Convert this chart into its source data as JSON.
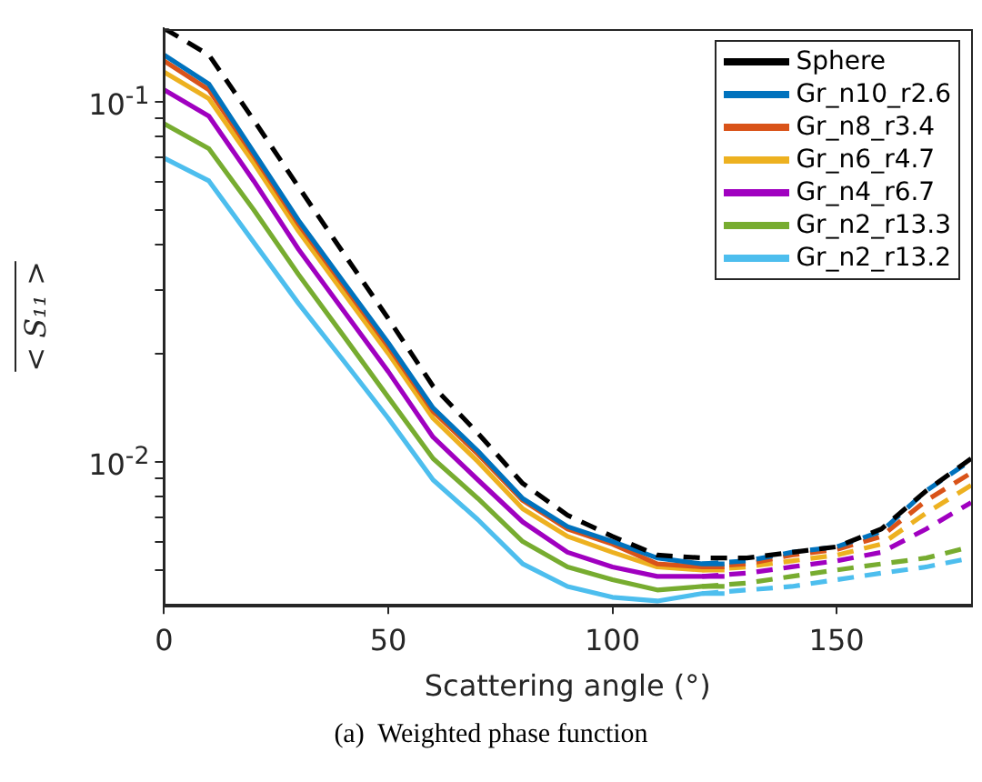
{
  "chart_data": {
    "type": "line",
    "xlabel": "Scattering angle (°)",
    "ylabel": "< S₁₁ >",
    "annotations": [
      "(a)  Weighted phase function"
    ],
    "log": "y",
    "grid": false,
    "legend": "top right",
    "marker": "none",
    "xlim": [
      0,
      180
    ],
    "xticks": [
      0,
      50,
      100,
      150
    ],
    "ylim": [
      0.004,
      0.16
    ],
    "yticks": [
      {
        "value": 0.005,
        "label": null
      },
      {
        "value": 0.006,
        "label": null
      },
      {
        "value": 0.007,
        "label": null
      },
      {
        "value": 0.008,
        "label": null
      },
      {
        "value": 0.009,
        "label": null
      },
      {
        "value": 0.01,
        "label": "10$^{-2}$"
      },
      {
        "value": 0.02,
        "label": null
      },
      {
        "value": 0.03,
        "label": null
      },
      {
        "value": 0.04,
        "label": null
      },
      {
        "value": 0.05,
        "label": null
      },
      {
        "value": 0.06,
        "label": null
      },
      {
        "value": 0.07,
        "label": null
      },
      {
        "value": 0.08,
        "label": null
      },
      {
        "value": 0.09,
        "label": null
      },
      {
        "value": 0.1,
        "label": "10$^{-1}$"
      }
    ],
    "series": [
      {
        "name": "Sphere",
        "color": "#000000",
        "line_style": "dashed",
        "x": [
          0,
          10,
          20,
          30,
          40,
          50,
          60,
          70,
          80,
          90,
          100,
          110,
          120,
          130,
          140,
          150,
          160,
          170,
          180
        ],
        "values": [
          0.16,
          0.135,
          0.089,
          0.058,
          0.038,
          0.025,
          0.0162,
          0.012,
          0.0087,
          0.0071,
          0.0062,
          0.0055,
          0.0054,
          0.0054,
          0.0056,
          0.0058,
          0.0065,
          0.0083,
          0.0102
        ]
      },
      {
        "name": "Gr_n10_r2.6",
        "color": "#0072bd",
        "line_style": "solid",
        "x": [
          0,
          10,
          20,
          30,
          40,
          50,
          60,
          70,
          80,
          90,
          100,
          110,
          120,
          125
        ],
        "values": [
          0.135,
          0.112,
          0.0724,
          0.0468,
          0.0316,
          0.0214,
          0.0141,
          0.0107,
          0.0079,
          0.0066,
          0.006,
          0.0054,
          0.0052,
          0.0052
        ]
      },
      {
        "name": "Gr_n8_r3.4",
        "color": "#d95319",
        "line_style": "solid",
        "x": [
          0,
          10,
          20,
          30,
          40,
          50,
          60,
          70,
          80,
          90,
          100,
          110,
          120,
          125
        ],
        "values": [
          0.13,
          0.108,
          0.0708,
          0.0457,
          0.0309,
          0.0209,
          0.0138,
          0.0105,
          0.0078,
          0.0065,
          0.0059,
          0.0052,
          0.0051,
          0.0051
        ]
      },
      {
        "name": "Gr_n6_r4.7",
        "color": "#edb120",
        "line_style": "solid",
        "x": [
          0,
          10,
          20,
          30,
          40,
          50,
          60,
          70,
          80,
          90,
          100,
          110,
          120,
          125
        ],
        "values": [
          0.121,
          0.102,
          0.0676,
          0.0437,
          0.0295,
          0.02,
          0.0132,
          0.01,
          0.0074,
          0.0062,
          0.0056,
          0.0051,
          0.005,
          0.005
        ]
      },
      {
        "name": "Gr_n4_r6.7",
        "color": "#a000c0",
        "line_style": "solid",
        "x": [
          0,
          10,
          20,
          30,
          40,
          50,
          60,
          70,
          80,
          90,
          100,
          110,
          120,
          125
        ],
        "values": [
          0.108,
          0.0912,
          0.0603,
          0.0389,
          0.0263,
          0.0178,
          0.0117,
          0.0089,
          0.0068,
          0.0056,
          0.0051,
          0.0048,
          0.0048,
          0.0048
        ]
      },
      {
        "name": "Gr_n2_r13.3",
        "color": "#77ac30",
        "line_style": "solid",
        "x": [
          0,
          10,
          20,
          30,
          40,
          50,
          60,
          70,
          80,
          90,
          100,
          110,
          120,
          125
        ],
        "values": [
          0.0869,
          0.0741,
          0.0501,
          0.0331,
          0.0224,
          0.0151,
          0.0102,
          0.0079,
          0.006,
          0.0051,
          0.0047,
          0.0044,
          0.0045,
          0.0045
        ]
      },
      {
        "name": "Gr_n2_r13.2",
        "color": "#4dbeee",
        "line_style": "solid",
        "x": [
          0,
          10,
          20,
          30,
          40,
          50,
          60,
          70,
          80,
          90,
          100,
          110,
          120,
          125
        ],
        "values": [
          0.0698,
          0.0603,
          0.0407,
          0.0275,
          0.0191,
          0.0132,
          0.0089,
          0.0069,
          0.0052,
          0.0045,
          0.0042,
          0.0041,
          0.0043,
          0.0043
        ]
      },
      {
        "color": "#0072bd",
        "line_style": "dashed",
        "x": [
          120,
          130,
          140,
          150,
          160,
          170,
          180
        ],
        "values": [
          0.0052,
          0.0053,
          0.0056,
          0.0058,
          0.0064,
          0.0083,
          0.0101
        ]
      },
      {
        "color": "#d95319",
        "line_style": "dashed",
        "x": [
          120,
          130,
          140,
          150,
          160,
          170,
          180
        ],
        "values": [
          0.0051,
          0.0052,
          0.0055,
          0.0057,
          0.0062,
          0.0078,
          0.0093
        ]
      },
      {
        "color": "#edb120",
        "line_style": "dashed",
        "x": [
          120,
          130,
          140,
          150,
          160,
          170,
          180
        ],
        "values": [
          0.005,
          0.0051,
          0.0053,
          0.0055,
          0.0059,
          0.0072,
          0.0086
        ]
      },
      {
        "color": "#a000c0",
        "line_style": "dashed",
        "x": [
          120,
          130,
          140,
          150,
          160,
          170,
          180
        ],
        "values": [
          0.0048,
          0.0049,
          0.0051,
          0.0053,
          0.0056,
          0.0065,
          0.0077
        ]
      },
      {
        "color": "#77ac30",
        "line_style": "dashed",
        "x": [
          120,
          130,
          140,
          150,
          160,
          170,
          180
        ],
        "values": [
          0.0045,
          0.0046,
          0.0048,
          0.005,
          0.0052,
          0.0054,
          0.0058
        ]
      },
      {
        "color": "#4dbeee",
        "line_style": "dashed",
        "x": [
          120,
          130,
          140,
          150,
          160,
          170,
          180
        ],
        "values": [
          0.0043,
          0.0044,
          0.0045,
          0.0047,
          0.0049,
          0.0051,
          0.0054
        ]
      }
    ]
  }
}
